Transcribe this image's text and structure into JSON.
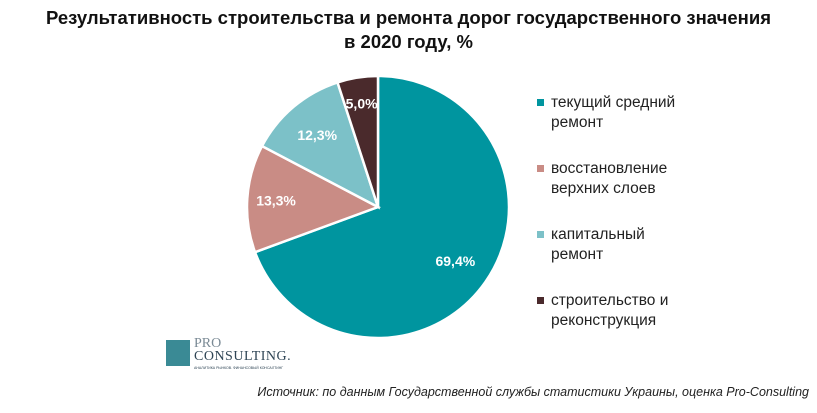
{
  "chart_data": {
    "type": "pie",
    "title": "Результативность строительства и ремонта дорог государственного значения в 2020 году, %",
    "title_lines": [
      "Результативность строительства и ремонта дорог государственного значения",
      "в 2020 году, %"
    ],
    "slices": [
      {
        "label": "текущий средний ремонт",
        "label_lines": [
          "текущий средний",
          "ремонт"
        ],
        "value": 69.4,
        "display": "69,4%",
        "color": "#00959f"
      },
      {
        "label": "восстановление верхних слоев",
        "label_lines": [
          "восстановление",
          "верхних слоев"
        ],
        "value": 13.3,
        "display": "13,3%",
        "color": "#c98c85"
      },
      {
        "label": "капитальный ремонт",
        "label_lines": [
          "капитальный",
          "ремонт"
        ],
        "value": 12.3,
        "display": "12,3%",
        "color": "#7cc1c8"
      },
      {
        "label": "строительство и реконструкция",
        "label_lines": [
          "строительство и",
          "реконструкция"
        ],
        "value": 5.0,
        "display": "5,0%",
        "color": "#4a2a2c"
      }
    ],
    "legend_position": "right"
  },
  "source": "Источник: по данным Государственной службы статистики Украины, оценка Pro-Consulting",
  "logo": {
    "line1": "PRO",
    "line2": "CONSULTING.",
    "tagline": "АНАЛИТИКА РЫНКОВ. ФИНАНСОВЫЙ КОНСАЛТИНГ"
  }
}
